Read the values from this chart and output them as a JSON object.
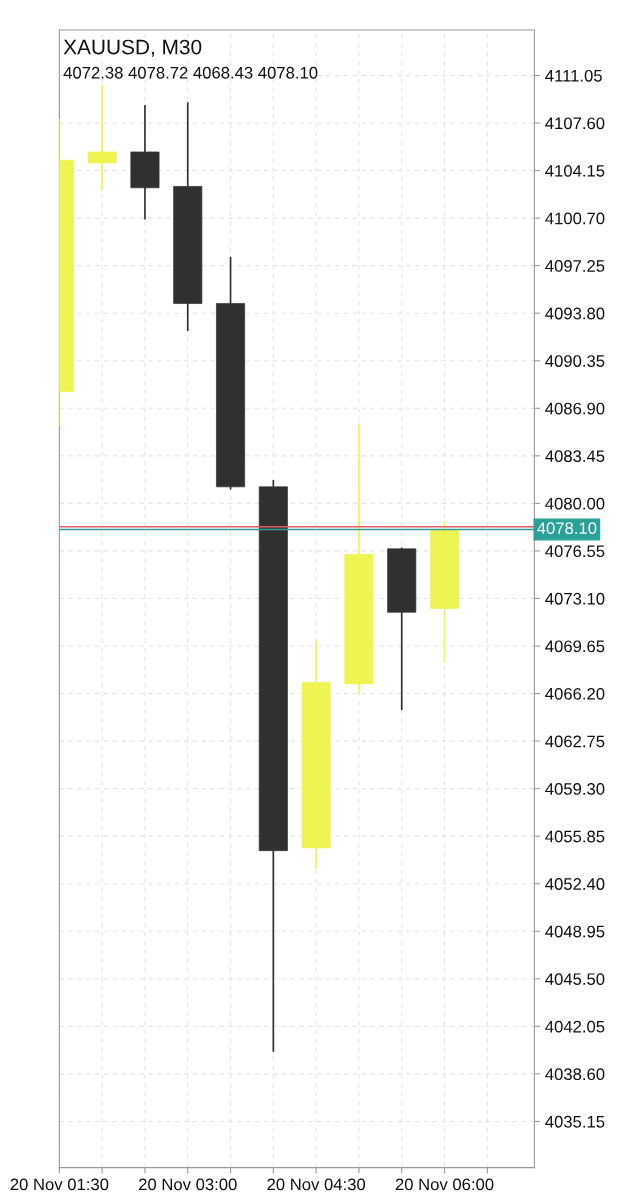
{
  "chart_data": {
    "type": "candlestick",
    "title": "XAUUSD, M30",
    "subtitle": "4072.38 4078.72 4068.43 4078.10",
    "categories": [
      "20 Nov 01:30",
      null,
      null,
      "20 Nov 03:00",
      null,
      null,
      "20 Nov 04:30",
      null,
      null,
      "20 Nov 06:00"
    ],
    "ohlc": [
      [
        4088.1,
        4107.9,
        4085.6,
        4104.9
      ],
      [
        4104.7,
        4110.4,
        4102.7,
        4105.5
      ],
      [
        4105.5,
        4108.9,
        4100.6,
        4102.9
      ],
      [
        4103.0,
        4109.1,
        4092.5,
        4094.5
      ],
      [
        4094.5,
        4097.9,
        4081.0,
        4081.2
      ],
      [
        4081.2,
        4081.7,
        4040.2,
        4054.8
      ],
      [
        4055.0,
        4070.1,
        4053.5,
        4067.0
      ],
      [
        4066.9,
        4085.8,
        4066.2,
        4076.3
      ],
      [
        4076.7,
        4076.8,
        4065.0,
        4072.1
      ],
      [
        4072.38,
        4078.72,
        4068.43,
        4078.1
      ]
    ],
    "colors": [
      "#eef553",
      "#eef553",
      "#303030",
      "#303030",
      "#303030",
      "#303030",
      "#eef553",
      "#eef553",
      "#303030",
      "#eef553"
    ],
    "ylim": [
      4031.8,
      4114.35
    ],
    "yticks": [
      {
        "value": 4111.05,
        "label": "4111.05"
      },
      {
        "value": 4107.6,
        "label": "4107.60"
      },
      {
        "value": 4104.15,
        "label": "4104.15"
      },
      {
        "value": 4100.7,
        "label": "4100.70"
      },
      {
        "value": 4097.25,
        "label": "4097.25"
      },
      {
        "value": 4093.8,
        "label": "4093.80"
      },
      {
        "value": 4090.35,
        "label": "4090.35"
      },
      {
        "value": 4086.9,
        "label": "4086.90"
      },
      {
        "value": 4083.45,
        "label": "4083.45"
      },
      {
        "value": 4080.0,
        "label": "4080.00"
      },
      {
        "value": 4076.55,
        "label": "4076.55"
      },
      {
        "value": 4073.1,
        "label": "4073.10"
      },
      {
        "value": 4069.65,
        "label": "4069.65"
      },
      {
        "value": 4066.2,
        "label": "4066.20"
      },
      {
        "value": 4062.75,
        "label": "4062.75"
      },
      {
        "value": 4059.3,
        "label": "4059.30"
      },
      {
        "value": 4055.85,
        "label": "4055.85"
      },
      {
        "value": 4052.4,
        "label": "4052.40"
      },
      {
        "value": 4048.95,
        "label": "4048.95"
      },
      {
        "value": 4045.5,
        "label": "4045.50"
      },
      {
        "value": 4042.05,
        "label": "4042.05"
      },
      {
        "value": 4038.6,
        "label": "4038.60"
      },
      {
        "value": 4035.15,
        "label": "4035.15"
      }
    ],
    "ref_lines": [
      {
        "axis": "y",
        "value": 4078.3,
        "color": "#e06060"
      },
      {
        "axis": "y",
        "value": 4078.1,
        "label": "4078.10",
        "color": "#2aa198"
      }
    ],
    "grid": true
  }
}
